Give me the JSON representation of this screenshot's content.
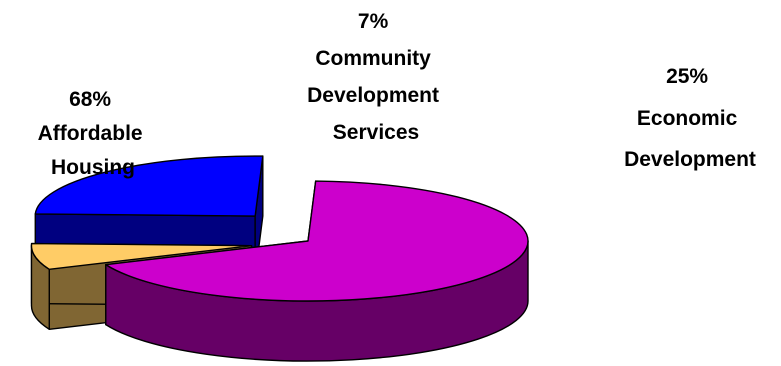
{
  "chart_data": {
    "type": "pie",
    "title": "",
    "three_d": true,
    "exploded": true,
    "slices": [
      {
        "label": "Affordable Housing",
        "percent_text": "68%",
        "value": 68,
        "top_color": "#cc00cc",
        "side_color": "#660066"
      },
      {
        "label": "Community Development Services",
        "percent_text": "7%",
        "value": 7,
        "top_color": "#ffcc66",
        "side_color": "#806633"
      },
      {
        "label": "Economic Development",
        "percent_text": "25%",
        "value": 25,
        "top_color": "#0000ff",
        "side_color": "#000080"
      }
    ]
  }
}
